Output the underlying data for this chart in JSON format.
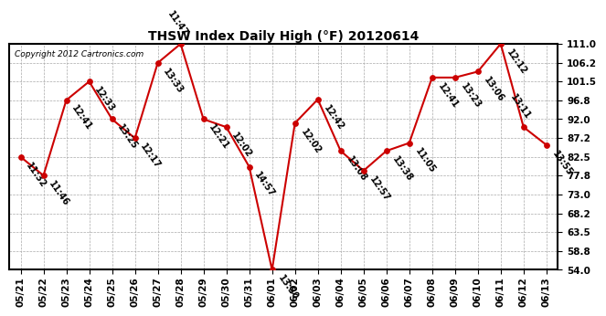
{
  "title": "THSW Index Daily High (°F) 20120614",
  "copyright": "Copyright 2012 Cartronics.com",
  "line_color": "#cc0000",
  "background_color": "#ffffff",
  "grid_color": "#bbbbbb",
  "ylim": [
    54.0,
    111.0
  ],
  "yticks": [
    54.0,
    58.8,
    63.5,
    68.2,
    73.0,
    77.8,
    82.5,
    87.2,
    92.0,
    96.8,
    101.5,
    106.2,
    111.0
  ],
  "dates": [
    "05/21",
    "05/22",
    "05/23",
    "05/24",
    "05/25",
    "05/26",
    "05/27",
    "05/28",
    "05/29",
    "05/30",
    "05/31",
    "06/01",
    "06/02",
    "06/03",
    "06/04",
    "06/05",
    "06/06",
    "06/07",
    "06/08",
    "06/09",
    "06/10",
    "06/11",
    "06/12",
    "06/13"
  ],
  "values": [
    82.5,
    77.8,
    96.8,
    101.5,
    92.0,
    87.2,
    106.2,
    111.0,
    92.0,
    90.0,
    80.0,
    54.0,
    91.0,
    97.0,
    84.0,
    79.0,
    84.0,
    86.0,
    102.5,
    102.5,
    104.0,
    111.0,
    90.0,
    85.5
  ],
  "point_labels": [
    {
      "i": 0,
      "label": "11:32",
      "above": false
    },
    {
      "i": 1,
      "label": "11:46",
      "above": false
    },
    {
      "i": 2,
      "label": "12:41",
      "above": false
    },
    {
      "i": 3,
      "label": "12:33",
      "above": false
    },
    {
      "i": 4,
      "label": "13:25",
      "above": false
    },
    {
      "i": 5,
      "label": "12:17",
      "above": false
    },
    {
      "i": 6,
      "label": "13:33",
      "above": false
    },
    {
      "i": 7,
      "label": "11:47",
      "above": true
    },
    {
      "i": 8,
      "label": "12:21",
      "above": false
    },
    {
      "i": 9,
      "label": "12:02",
      "above": false
    },
    {
      "i": 10,
      "label": "14:57",
      "above": false
    },
    {
      "i": 11,
      "label": "13:50",
      "above": false
    },
    {
      "i": 12,
      "label": "12:02",
      "above": false
    },
    {
      "i": 13,
      "label": "12:42",
      "above": false
    },
    {
      "i": 14,
      "label": "13:08",
      "above": false
    },
    {
      "i": 15,
      "label": "12:57",
      "above": false
    },
    {
      "i": 16,
      "label": "13:38",
      "above": false
    },
    {
      "i": 17,
      "label": "11:05",
      "above": false
    },
    {
      "i": 18,
      "label": "12:41",
      "above": false
    },
    {
      "i": 19,
      "label": "13:23",
      "above": false
    },
    {
      "i": 20,
      "label": "13:06",
      "above": false
    },
    {
      "i": 21,
      "label": "12:12",
      "above": false
    },
    {
      "i": 22,
      "label": "13:11",
      "above": true
    },
    {
      "i": 23,
      "label": "13:55",
      "above": false
    }
  ]
}
